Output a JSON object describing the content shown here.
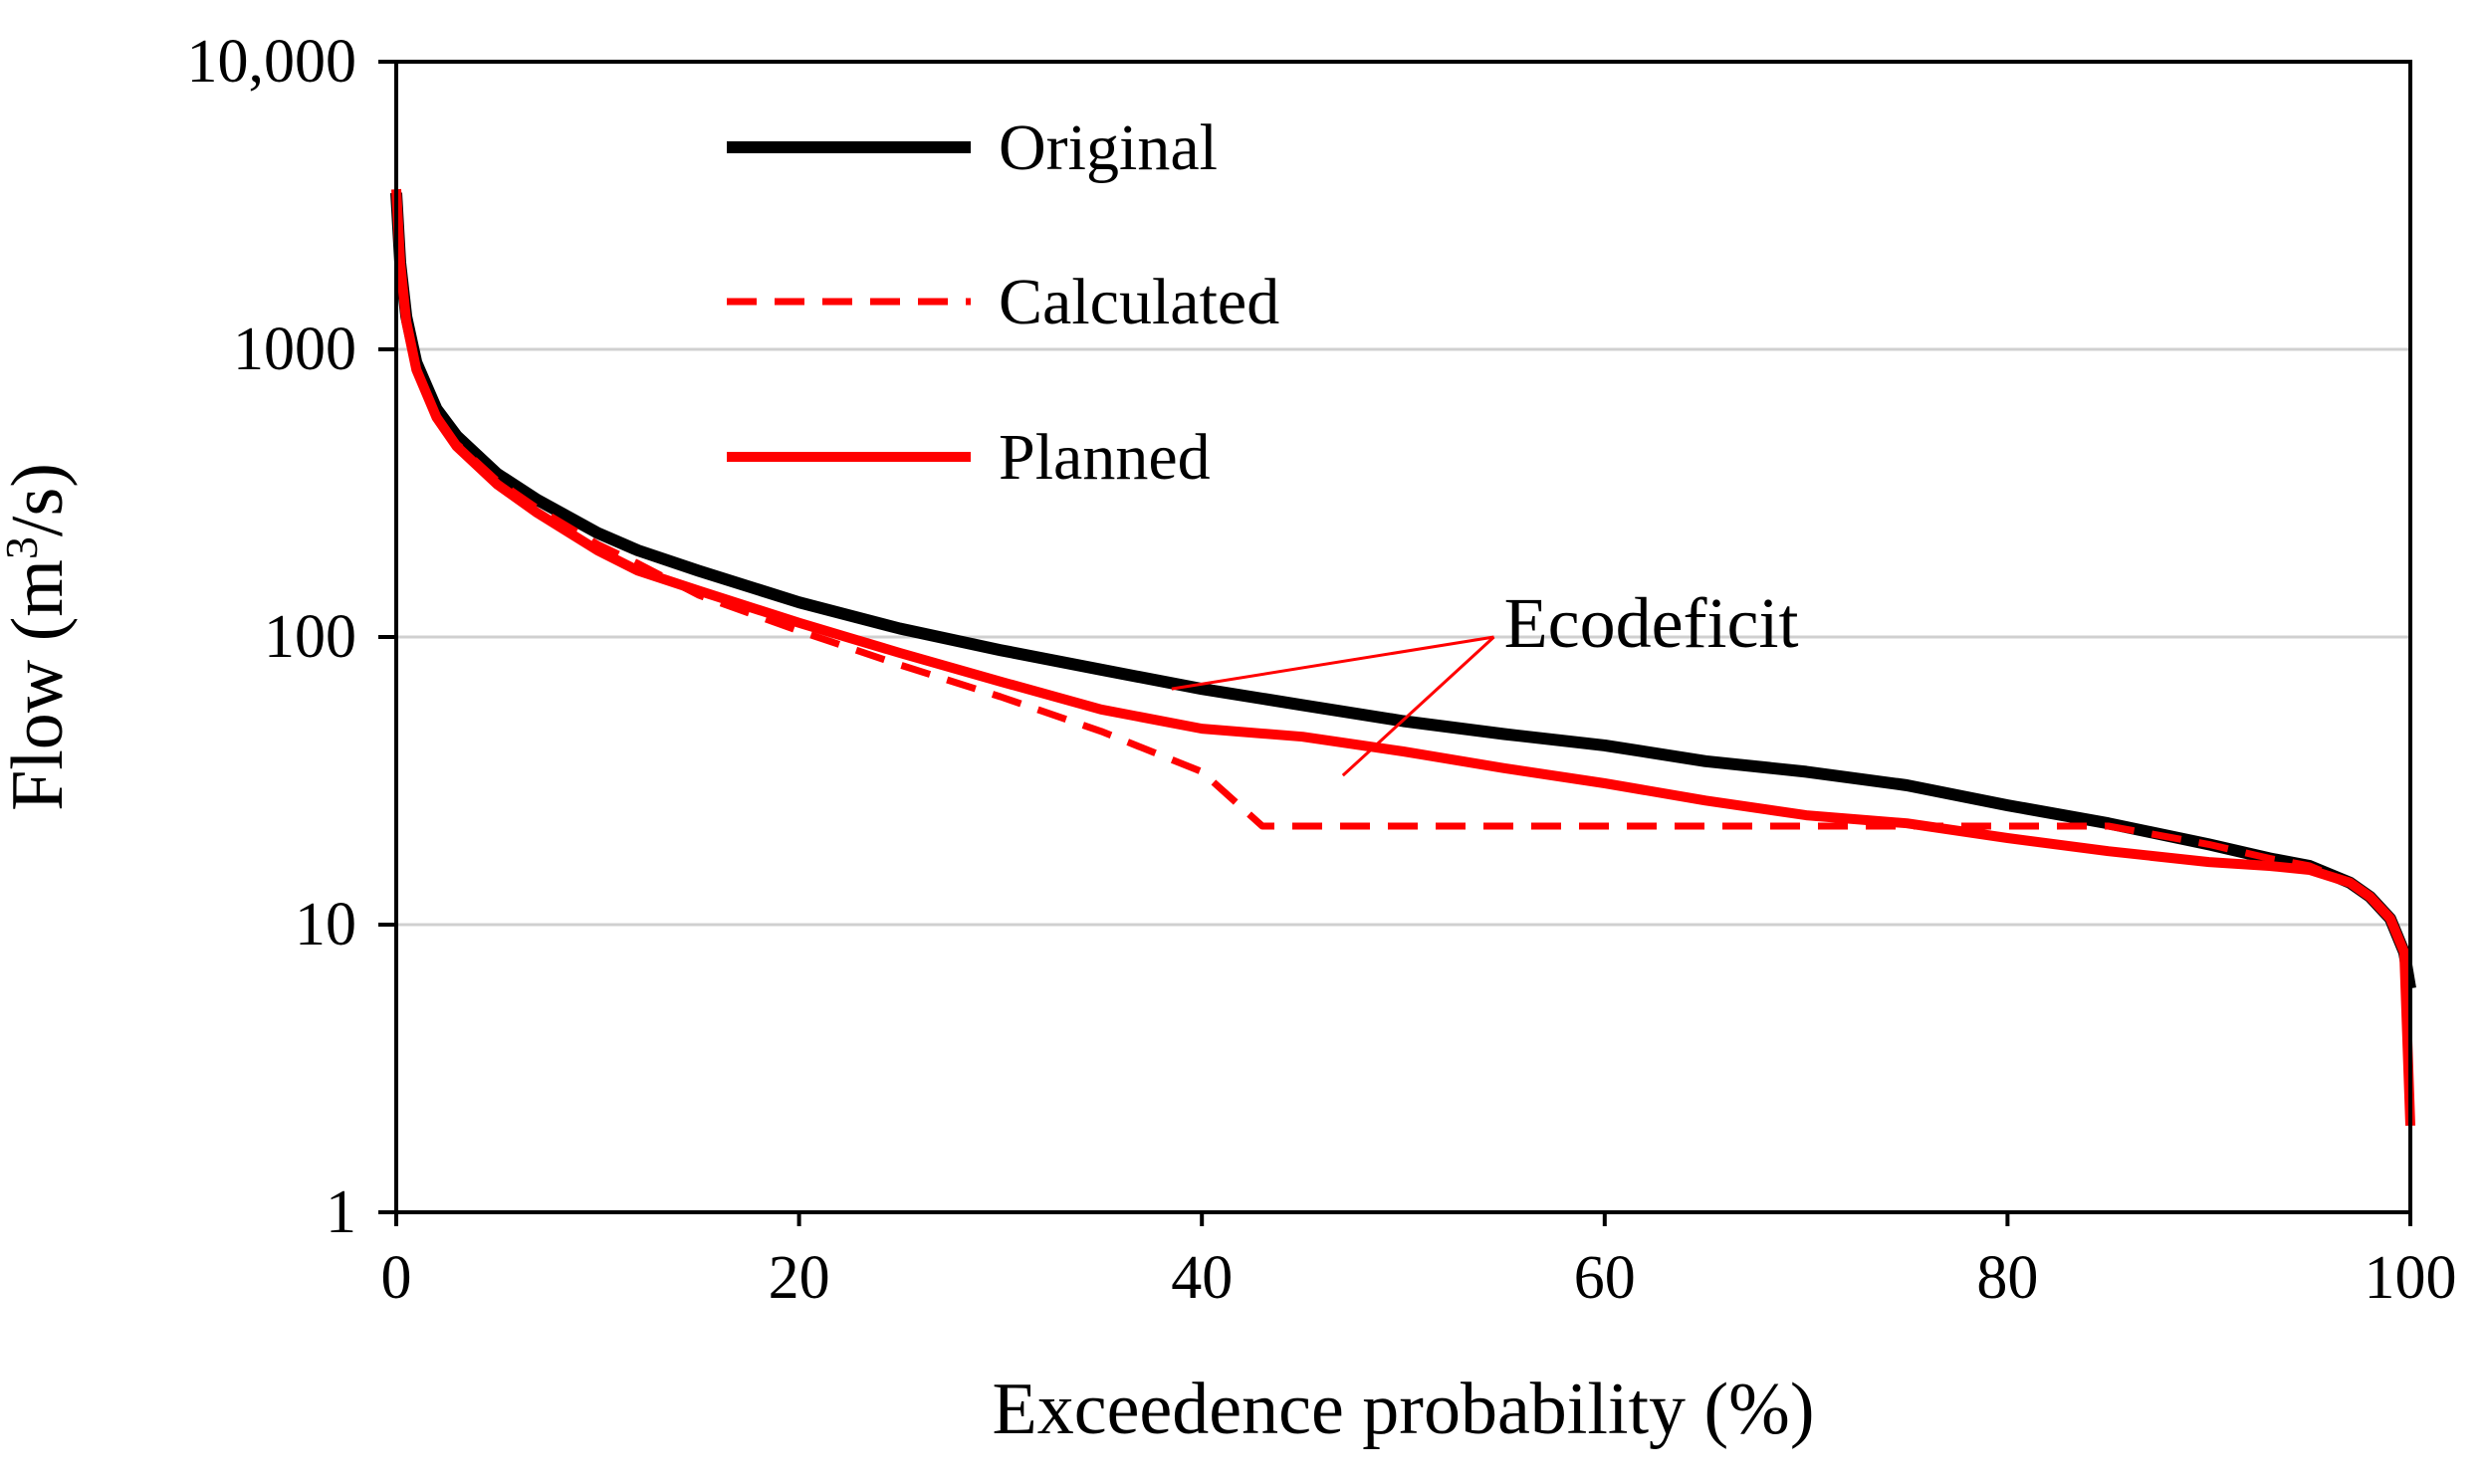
{
  "chart_data": {
    "type": "line",
    "xlabel": "Exceedence probability (%)",
    "ylabel": "Flow (m",
    "ylabel_sup": "3",
    "ylabel_end": "/s)",
    "xlim": [
      0,
      100
    ],
    "ylim": [
      1,
      10000
    ],
    "yscale": "log",
    "grid": "horizontal",
    "legend_position": "top-left",
    "x_ticks": [
      0,
      20,
      40,
      60,
      80,
      100
    ],
    "x_tick_labels": [
      "0",
      "20",
      "40",
      "60",
      "80",
      "100"
    ],
    "y_ticks": [
      1,
      10,
      100,
      1000,
      10000
    ],
    "y_tick_labels": [
      "1",
      "10",
      "100",
      "1000",
      "10,000"
    ],
    "series": [
      {
        "name": "Original",
        "color": "#000000",
        "style": "solid",
        "points": [
          [
            0,
            3500
          ],
          [
            0.2,
            2000
          ],
          [
            0.5,
            1300
          ],
          [
            1,
            900
          ],
          [
            2,
            620
          ],
          [
            3,
            500
          ],
          [
            5,
            370
          ],
          [
            7,
            300
          ],
          [
            10,
            230
          ],
          [
            12,
            200
          ],
          [
            15,
            170
          ],
          [
            20,
            132
          ],
          [
            25,
            107
          ],
          [
            30,
            90
          ],
          [
            35,
            77
          ],
          [
            40,
            66
          ],
          [
            45,
            58
          ],
          [
            50,
            51
          ],
          [
            55,
            46
          ],
          [
            60,
            42
          ],
          [
            65,
            37
          ],
          [
            70,
            34
          ],
          [
            75,
            30.5
          ],
          [
            80,
            26
          ],
          [
            85,
            22.5
          ],
          [
            90,
            19
          ],
          [
            93,
            17
          ],
          [
            95,
            16
          ],
          [
            97,
            14
          ],
          [
            98,
            12.5
          ],
          [
            99,
            10.5
          ],
          [
            99.7,
            8
          ],
          [
            100,
            6
          ]
        ]
      },
      {
        "name": "Calculated",
        "color": "#ff0000",
        "style": "dashed",
        "points": [
          [
            0,
            3500
          ],
          [
            0.2,
            2000
          ],
          [
            0.5,
            1250
          ],
          [
            1,
            850
          ],
          [
            2,
            590
          ],
          [
            3,
            470
          ],
          [
            5,
            350
          ],
          [
            7,
            280
          ],
          [
            10,
            210
          ],
          [
            12,
            180
          ],
          [
            15,
            140
          ],
          [
            20,
            105
          ],
          [
            25,
            80
          ],
          [
            30,
            62
          ],
          [
            35,
            47
          ],
          [
            40,
            34
          ],
          [
            43,
            22
          ],
          [
            50,
            22
          ],
          [
            60,
            22
          ],
          [
            70,
            22
          ],
          [
            80,
            22
          ],
          [
            85,
            22
          ],
          [
            90,
            19
          ],
          [
            93,
            17
          ],
          [
            95,
            16
          ],
          [
            97,
            14
          ],
          [
            98,
            12.5
          ],
          [
            99,
            10.5
          ],
          [
            99.7,
            8
          ],
          [
            100,
            2
          ]
        ]
      },
      {
        "name": "Planned",
        "color": "#ff0000",
        "style": "solid",
        "points": [
          [
            0,
            3600
          ],
          [
            0.2,
            2000
          ],
          [
            0.5,
            1250
          ],
          [
            1,
            850
          ],
          [
            2,
            580
          ],
          [
            3,
            460
          ],
          [
            5,
            340
          ],
          [
            7,
            270
          ],
          [
            10,
            200
          ],
          [
            12,
            170
          ],
          [
            15,
            145
          ],
          [
            20,
            112
          ],
          [
            25,
            88
          ],
          [
            30,
            70
          ],
          [
            35,
            56
          ],
          [
            40,
            48
          ],
          [
            45,
            45
          ],
          [
            50,
            40
          ],
          [
            55,
            35
          ],
          [
            60,
            31
          ],
          [
            65,
            27
          ],
          [
            70,
            24
          ],
          [
            75,
            22.5
          ],
          [
            80,
            20
          ],
          [
            85,
            18
          ],
          [
            90,
            16.5
          ],
          [
            93,
            16
          ],
          [
            95,
            15.5
          ],
          [
            97,
            14
          ],
          [
            98,
            12.5
          ],
          [
            99,
            10.5
          ],
          [
            99.7,
            8
          ],
          [
            100,
            2
          ]
        ]
      }
    ],
    "annotation": {
      "text": "Ecodeficit",
      "text_at": [
        55,
        110
      ],
      "arrows": [
        {
          "from": [
            54.5,
            100
          ],
          "to": [
            38.5,
            66
          ]
        },
        {
          "from": [
            54.5,
            100
          ],
          "to": [
            47,
            33
          ]
        }
      ]
    }
  }
}
